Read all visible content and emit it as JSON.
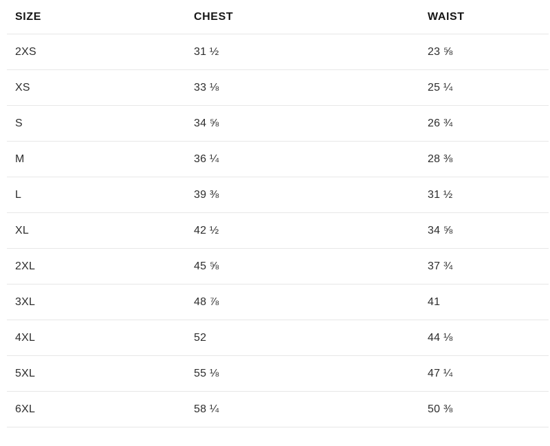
{
  "table": {
    "columns": [
      {
        "key": "size",
        "label": "SIZE"
      },
      {
        "key": "chest",
        "label": "CHEST"
      },
      {
        "key": "waist",
        "label": "WAIST"
      }
    ],
    "rows": [
      {
        "size": "2XS",
        "chest": "31 ½",
        "waist": "23 ⅝"
      },
      {
        "size": "XS",
        "chest": "33 ⅛",
        "waist": "25 ¼"
      },
      {
        "size": "S",
        "chest": "34 ⅝",
        "waist": "26 ¾"
      },
      {
        "size": "M",
        "chest": "36 ¼",
        "waist": "28 ⅜"
      },
      {
        "size": "L",
        "chest": "39 ⅜",
        "waist": "31 ½"
      },
      {
        "size": "XL",
        "chest": "42 ½",
        "waist": "34 ⅝"
      },
      {
        "size": "2XL",
        "chest": "45 ⅝",
        "waist": "37 ¾"
      },
      {
        "size": "3XL",
        "chest": "48 ⅞",
        "waist": "41"
      },
      {
        "size": "4XL",
        "chest": "52",
        "waist": "44 ⅛"
      },
      {
        "size": "5XL",
        "chest": "55 ⅛",
        "waist": "47 ¼"
      },
      {
        "size": "6XL",
        "chest": "58 ¼",
        "waist": "50 ⅜"
      }
    ],
    "colors": {
      "divider": "#e7e7e7",
      "header_text": "#161616",
      "body_text": "#2d2d2d",
      "background": "#ffffff"
    }
  }
}
